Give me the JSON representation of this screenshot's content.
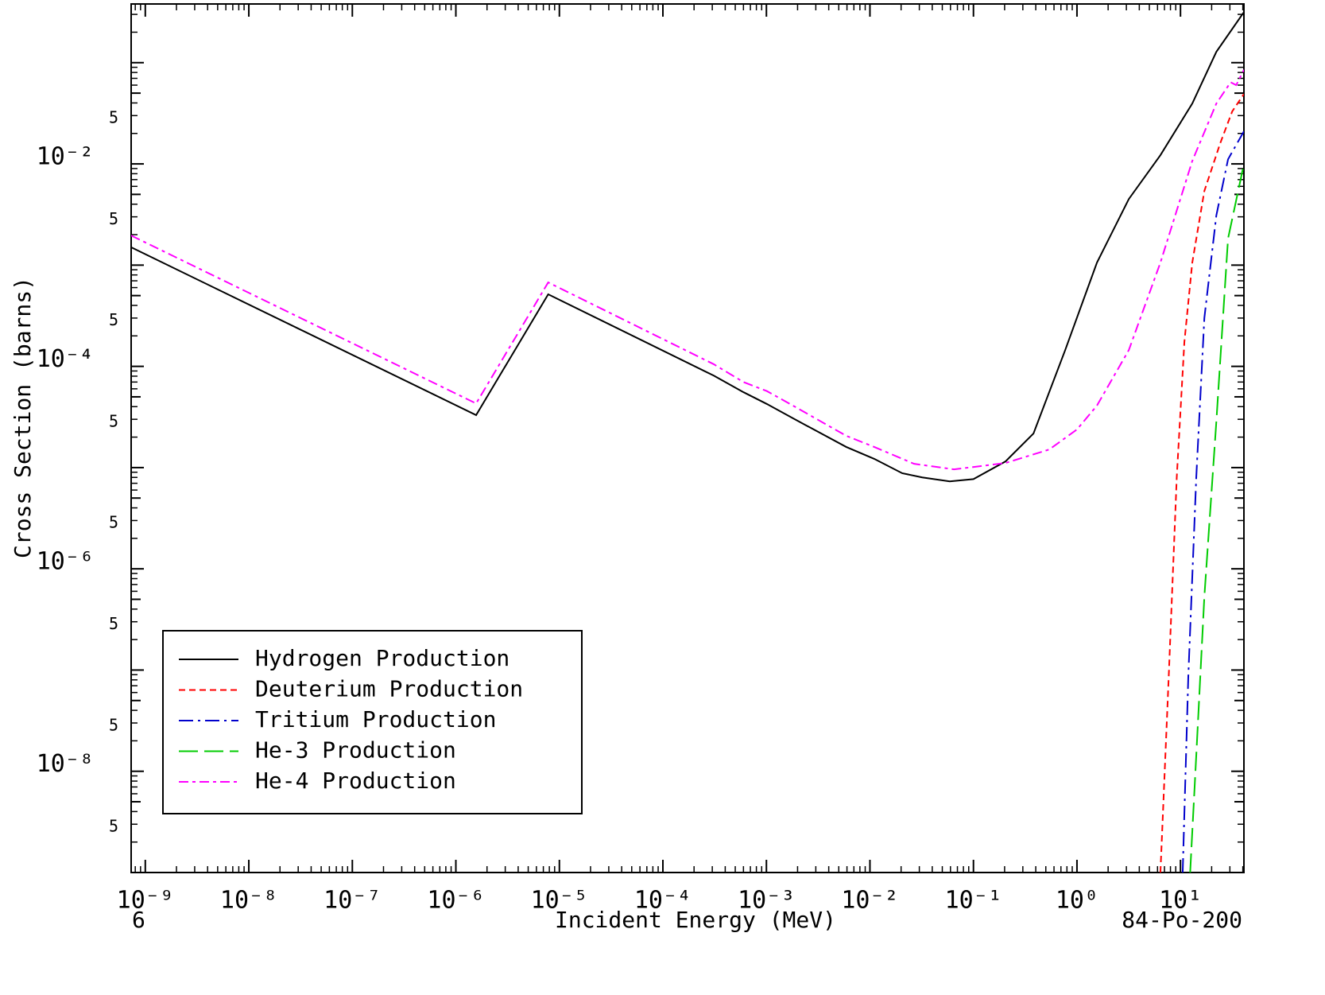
{
  "chart_data": {
    "type": "line",
    "xlabel": "Incident Energy (MeV)",
    "ylabel": "Cross Section (barns)",
    "annotations": [
      "6",
      "84-Po-200"
    ],
    "xscale": "log",
    "yscale": "log",
    "xlim": [
      7.3e-10,
      41
    ],
    "ylim": [
      1e-09,
      0.38
    ],
    "xticks": [
      {
        "value": 1e-09,
        "label": "10⁻⁹"
      },
      {
        "value": 1e-08,
        "label": "10⁻⁸"
      },
      {
        "value": 1e-07,
        "label": "10⁻⁷"
      },
      {
        "value": 1e-06,
        "label": "10⁻⁶"
      },
      {
        "value": 1e-05,
        "label": "10⁻⁵"
      },
      {
        "value": 0.0001,
        "label": "10⁻⁴"
      },
      {
        "value": 0.001,
        "label": "10⁻³"
      },
      {
        "value": 0.01,
        "label": "10⁻²"
      },
      {
        "value": 0.1,
        "label": "10⁻¹"
      },
      {
        "value": 1,
        "label": "10⁰"
      },
      {
        "value": 10,
        "label": "10¹"
      }
    ],
    "yticks": [
      {
        "value": 1e-09,
        "label": null
      },
      {
        "value": 5e-09,
        "label": "5"
      },
      {
        "value": 1e-08,
        "label": "10⁻⁸"
      },
      {
        "value": 5e-08,
        "label": "5"
      },
      {
        "value": 1e-07,
        "label": null
      },
      {
        "value": 5e-07,
        "label": "5"
      },
      {
        "value": 1e-06,
        "label": "10⁻⁶"
      },
      {
        "value": 5e-06,
        "label": "5"
      },
      {
        "value": 1e-05,
        "label": null
      },
      {
        "value": 5e-05,
        "label": "5"
      },
      {
        "value": 0.0001,
        "label": "10⁻⁴"
      },
      {
        "value": 0.0005,
        "label": "5"
      },
      {
        "value": 0.001,
        "label": null
      },
      {
        "value": 0.005,
        "label": "5"
      },
      {
        "value": 0.01,
        "label": "10⁻²"
      },
      {
        "value": 0.05,
        "label": "5"
      },
      {
        "value": 0.1,
        "label": null
      }
    ],
    "legend": "lower left",
    "series": [
      {
        "name": "Hydrogen Production",
        "color": "#000000",
        "dash": "solid",
        "x": [
          7.3e-10,
          1.57e-06,
          7.8e-06,
          0.00031,
          0.0006,
          0.00101,
          0.00188,
          0.0059,
          0.011,
          0.0205,
          0.032,
          0.059,
          0.1,
          0.204,
          0.38,
          0.77,
          1.56,
          3.17,
          6.4,
          13.0,
          22.2,
          41
        ],
        "values": [
          0.0015,
          3.3e-05,
          0.000515,
          8.1e-05,
          5.56e-05,
          4.25e-05,
          3e-05,
          1.6e-05,
          1.22e-05,
          8.8e-06,
          8e-06,
          7.3e-06,
          7.7e-06,
          1.15e-05,
          2.17e-05,
          0.000145,
          0.00106,
          0.0045,
          0.0122,
          0.0395,
          0.128,
          0.316
        ]
      },
      {
        "name": "Deuterium Production",
        "color": "#ff0000",
        "dash": "dash",
        "x": [
          6.4,
          7.7,
          9.2,
          10.9,
          13.0,
          17.0,
          24.2,
          31.6,
          41
        ],
        "values": [
          1e-09,
          8.7e-08,
          8e-06,
          0.000174,
          0.00106,
          0.0054,
          0.016,
          0.033,
          0.049
        ]
      },
      {
        "name": "Tritium Production",
        "color": "#0000cc",
        "dash": "dashdot",
        "x": [
          10.5,
          11.9,
          14.2,
          17.0,
          22.2,
          28.8,
          41
        ],
        "values": [
          1e-09,
          8.7e-08,
          8e-06,
          0.0003,
          0.0031,
          0.0111,
          0.021
        ]
      },
      {
        "name": "He-3 Production",
        "color": "#00cc00",
        "dash": "longdash",
        "x": [
          12.4,
          14.2,
          17.0,
          22.2,
          28.8,
          41
        ],
        "values": [
          1e-09,
          1.43e-08,
          5.3e-07,
          2.85e-05,
          0.00183,
          0.01
        ]
      },
      {
        "name": "He-4 Production",
        "color": "#ff00ff",
        "dash": "dashdot2",
        "x": [
          7.3e-10,
          1.57e-06,
          7.8e-06,
          0.00031,
          0.0006,
          0.00101,
          0.00188,
          0.0059,
          0.011,
          0.0267,
          0.065,
          0.204,
          0.54,
          1.0,
          1.56,
          3.17,
          6.4,
          13.0,
          22.2,
          30.5,
          34.5,
          41
        ],
        "values": [
          0.00196,
          4.3e-05,
          0.000675,
          0.000105,
          7e-05,
          5.7e-05,
          4e-05,
          2.06e-05,
          1.6e-05,
          1.09e-05,
          9.6e-06,
          1.11e-05,
          1.51e-05,
          2.38e-05,
          4.1e-05,
          0.000145,
          0.00106,
          0.0107,
          0.0395,
          0.064,
          0.06,
          0.085
        ]
      }
    ]
  }
}
